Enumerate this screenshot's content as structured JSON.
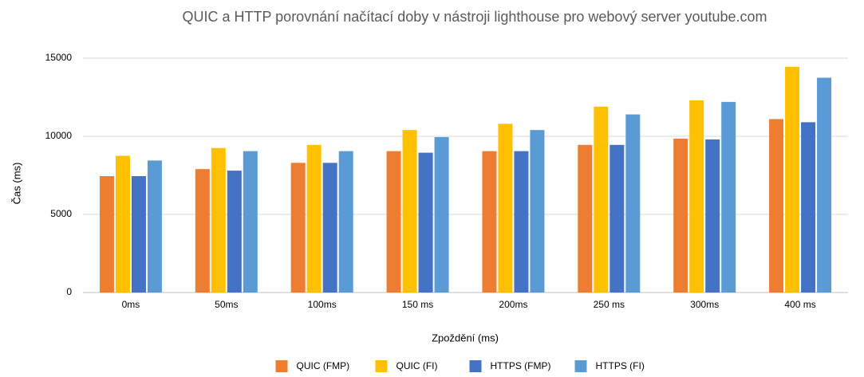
{
  "chart_data": {
    "type": "bar",
    "title": "QUIC a HTTP porovnání načítací doby v nástroji lighthouse pro webový server youtube.com",
    "x_label": "Zpoždění (ms)",
    "y_label": "Čas (ms)",
    "categories": [
      "0ms",
      "50ms",
      "100ms",
      "150 ms",
      "200ms",
      "250 ms",
      "300ms",
      "400 ms"
    ],
    "series": [
      {
        "name": "QUIC (FMP)",
        "color": "#ed7d31",
        "values": [
          7450,
          7900,
          8300,
          9050,
          9050,
          9450,
          9850,
          11100
        ]
      },
      {
        "name": "QUIC (FI)",
        "color": "#ffc000",
        "values": [
          8750,
          9250,
          9450,
          10400,
          10800,
          11900,
          12300,
          14450
        ]
      },
      {
        "name": "HTTPS (FMP)",
        "color": "#4472c4",
        "values": [
          7450,
          7800,
          8300,
          8950,
          9050,
          9450,
          9800,
          10900
        ]
      },
      {
        "name": "HTTPS (FI)",
        "color": "#5b9bd5",
        "values": [
          8450,
          9050,
          9050,
          9950,
          10400,
          11400,
          12200,
          13750
        ]
      }
    ],
    "ylim": [
      0,
      15000
    ],
    "yticks": [
      0,
      5000,
      10000,
      15000
    ],
    "grid": true,
    "legend": "bottom"
  }
}
